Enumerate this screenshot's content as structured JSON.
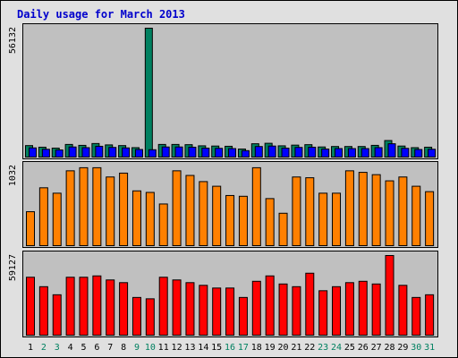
{
  "title": "Daily usage for March 2013",
  "colors": {
    "title": "#0000cc",
    "panel_bg": "#c0c0c0",
    "frame_bg": "#e0e0e0",
    "weekday_label": "#000000",
    "weekend_label": "#008060",
    "hits": "#008060",
    "files": "#0000ff",
    "pages": "#ff8000",
    "kbytes": "#ff0000"
  },
  "chart_data": [
    {
      "type": "bar",
      "panel": "hits-files",
      "y_label": "56132",
      "ylim": [
        0,
        56132
      ],
      "categories": [
        "1",
        "2",
        "3",
        "4",
        "5",
        "6",
        "7",
        "8",
        "9",
        "10",
        "11",
        "12",
        "13",
        "14",
        "15",
        "16",
        "17",
        "18",
        "19",
        "20",
        "21",
        "22",
        "23",
        "24",
        "25",
        "26",
        "27",
        "28",
        "29",
        "30",
        "31"
      ],
      "weekend_days": [
        "2",
        "3",
        "9",
        "10",
        "16",
        "17",
        "23",
        "24",
        "30",
        "31"
      ],
      "series": [
        {
          "key": "hits",
          "values": [
            5000,
            4300,
            3900,
            5500,
            5100,
            5900,
            5300,
            5000,
            4100,
            56132,
            5500,
            5500,
            5400,
            4900,
            4800,
            4700,
            3500,
            5800,
            6000,
            4900,
            5200,
            5400,
            4400,
            4600,
            4600,
            4600,
            5100,
            7200,
            4800,
            4100,
            4300
          ]
        },
        {
          "key": "files",
          "values": [
            4000,
            3400,
            3100,
            4400,
            4100,
            4700,
            4200,
            4000,
            3300,
            3200,
            4400,
            4400,
            4300,
            3900,
            3800,
            3700,
            2800,
            4600,
            4800,
            3900,
            4200,
            4300,
            3500,
            3700,
            3700,
            3700,
            4100,
            5800,
            3800,
            3300,
            3400
          ]
        }
      ]
    },
    {
      "type": "bar",
      "panel": "pages",
      "y_label": "1032",
      "ylim": [
        0,
        1032
      ],
      "categories": [
        "1",
        "2",
        "3",
        "4",
        "5",
        "6",
        "7",
        "8",
        "9",
        "10",
        "11",
        "12",
        "13",
        "14",
        "15",
        "16",
        "17",
        "18",
        "19",
        "20",
        "21",
        "22",
        "23",
        "24",
        "25",
        "26",
        "27",
        "28",
        "29",
        "30",
        "31"
      ],
      "series": [
        {
          "key": "pages",
          "values": [
            440,
            750,
            680,
            970,
            1010,
            1010,
            890,
            940,
            710,
            690,
            540,
            970,
            910,
            830,
            770,
            650,
            640,
            1010,
            610,
            420,
            890,
            880,
            680,
            680,
            970,
            950,
            920,
            840,
            890,
            770,
            700
          ]
        }
      ]
    },
    {
      "type": "bar",
      "panel": "kbytes",
      "y_label": "59127",
      "ylim": [
        0,
        59127
      ],
      "categories": [
        "1",
        "2",
        "3",
        "4",
        "5",
        "6",
        "7",
        "8",
        "9",
        "10",
        "11",
        "12",
        "13",
        "14",
        "15",
        "16",
        "17",
        "18",
        "19",
        "20",
        "21",
        "22",
        "23",
        "24",
        "25",
        "26",
        "27",
        "28",
        "29",
        "30",
        "31"
      ],
      "series": [
        {
          "key": "kbytes",
          "values": [
            43000,
            36000,
            30000,
            43000,
            43000,
            44000,
            41000,
            39000,
            28000,
            27000,
            43000,
            41000,
            39000,
            37000,
            35000,
            35000,
            28000,
            40000,
            44000,
            38000,
            36000,
            46000,
            33000,
            36000,
            39000,
            40000,
            38000,
            59127,
            37000,
            28000,
            30000
          ]
        }
      ]
    }
  ]
}
